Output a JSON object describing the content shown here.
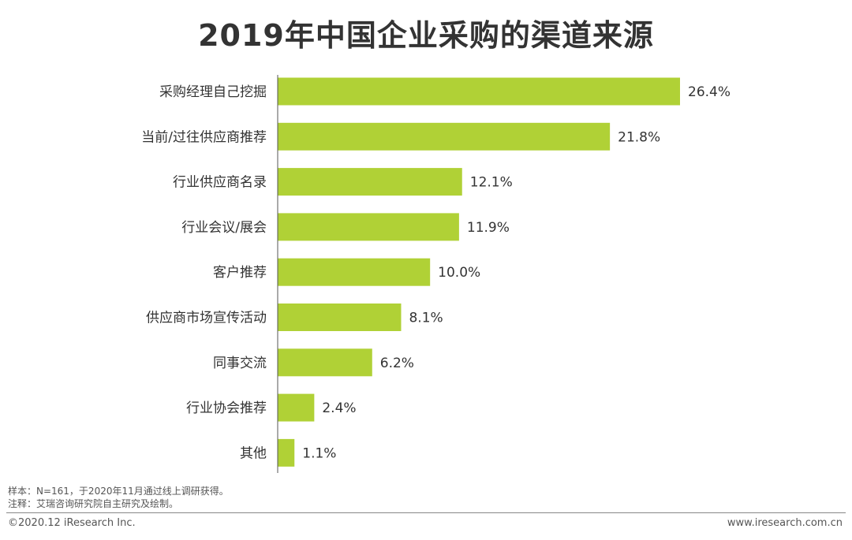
{
  "title": "2019年中国企业采购的渠道来源",
  "chart_data": {
    "type": "bar",
    "orientation": "horizontal",
    "categories": [
      "采购经理自己挖掘",
      "当前/过往供应商推荐",
      "行业供应商名录",
      "行业会议/展会",
      "客户推荐",
      "供应商市场宣传活动",
      "同事交流",
      "行业协会推荐",
      "其他"
    ],
    "values": [
      26.4,
      21.8,
      12.1,
      11.9,
      10.0,
      8.1,
      6.2,
      2.4,
      1.1
    ],
    "value_labels": [
      "26.4%",
      "21.8%",
      "12.1%",
      "11.9%",
      "10.0%",
      "8.1%",
      "6.2%",
      "2.4%",
      "1.1%"
    ],
    "xlim": [
      0,
      30
    ],
    "grid": false,
    "legend": "none",
    "bar_color": "#b0d136",
    "title": "2019年中国企业采购的渠道来源"
  },
  "notes": {
    "sample": "样本：N=161，于2020年11月通过线上调研获得。",
    "annotation": "注释：艾瑞咨询研究院自主研究及绘制。"
  },
  "footer": {
    "copyright": "©2020.12 iResearch Inc.",
    "website": "www.iresearch.com.cn"
  }
}
